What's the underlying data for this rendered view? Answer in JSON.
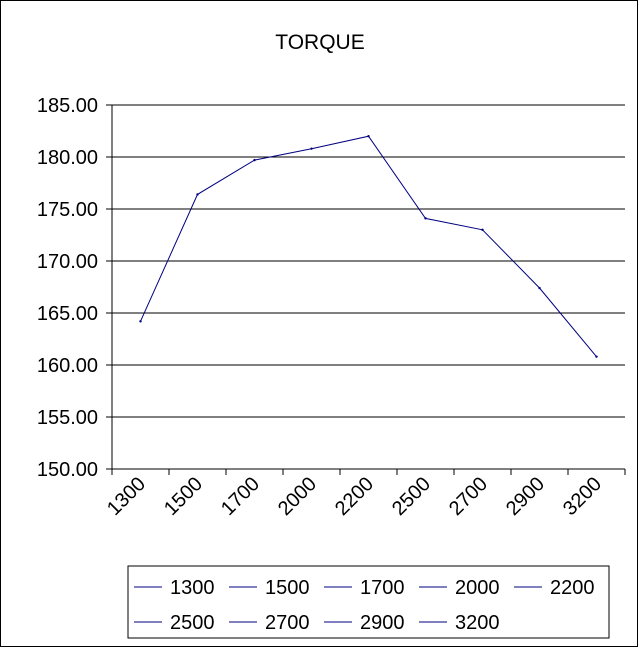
{
  "chart_data": {
    "type": "line",
    "title": "TORQUE",
    "xlabel": "",
    "ylabel": "",
    "categories": [
      "1300",
      "1500",
      "1700",
      "2000",
      "2200",
      "2500",
      "2700",
      "2900",
      "3200"
    ],
    "series": [
      {
        "values": [
          164.2,
          176.4,
          179.7,
          180.8,
          182.0,
          174.1,
          173.0,
          167.4,
          160.8
        ]
      }
    ],
    "ylim": [
      150,
      185
    ],
    "yticks": [
      "150.00",
      "155.00",
      "160.00",
      "165.00",
      "170.00",
      "175.00",
      "180.00",
      "185.00"
    ],
    "grid": true,
    "legend": {
      "placement": "bottom",
      "entries": [
        "1300",
        "1500",
        "1700",
        "2000",
        "2200",
        "2500",
        "2700",
        "2900",
        "3200"
      ]
    },
    "line_color": "#000080"
  }
}
